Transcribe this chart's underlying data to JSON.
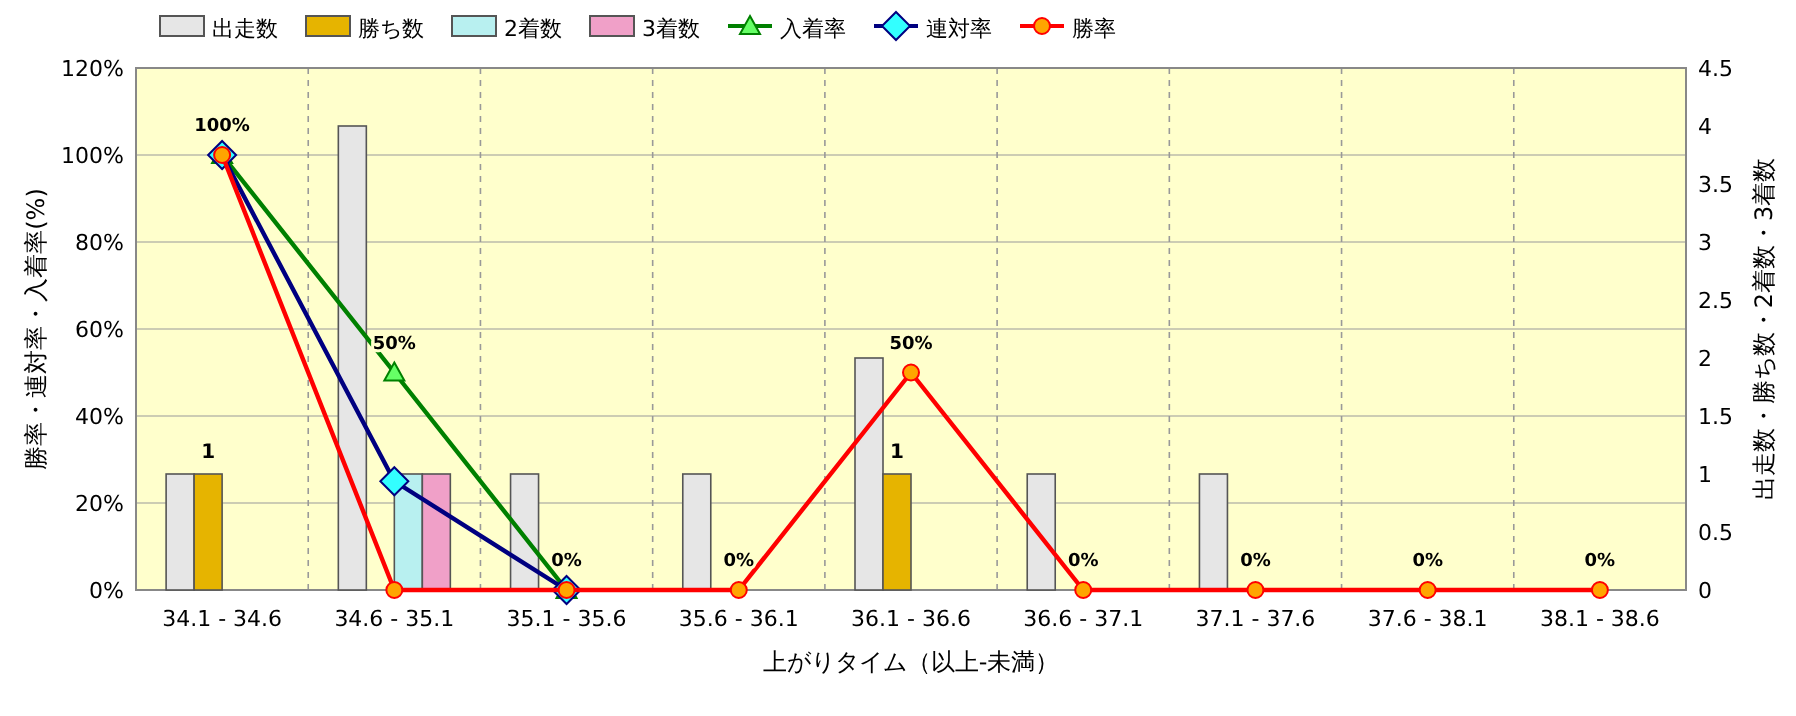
{
  "chart_data": {
    "type": "bar",
    "xlabel": "上がりタイム（以上-未満）",
    "ylabel": "勝率・連対率・入着率(%)",
    "y2label": "出走数・勝ち数・2着数・3着数",
    "categories": [
      "34.1 - 34.6",
      "34.6 - 35.1",
      "35.1 - 35.6",
      "35.6 - 36.1",
      "36.1 - 36.6",
      "36.6 - 37.1",
      "37.1 - 37.6",
      "37.6 - 38.1",
      "38.1 - 38.6"
    ],
    "series": [
      {
        "name": "出走数",
        "axis": "y2",
        "color": "#e6e6e6",
        "values": [
          1,
          4,
          1,
          1,
          2,
          1,
          1,
          0,
          0
        ]
      },
      {
        "name": "勝ち数",
        "axis": "y2",
        "color": "#e6b400",
        "values": [
          1,
          0,
          0,
          0,
          1,
          0,
          0,
          0,
          0
        ],
        "value_labels": [
          "1",
          null,
          null,
          null,
          "1",
          null,
          null,
          null,
          null
        ]
      },
      {
        "name": "2着数",
        "axis": "y2",
        "color": "#b8f0f0",
        "values": [
          0,
          1,
          0,
          0,
          0,
          0,
          0,
          0,
          0
        ]
      },
      {
        "name": "3着数",
        "axis": "y2",
        "color": "#f0a0c8",
        "values": [
          0,
          1,
          0,
          0,
          0,
          0,
          0,
          0,
          0
        ]
      },
      {
        "name": "入着率",
        "type": "line",
        "color": "#008000",
        "marker": "triangle",
        "values": [
          100,
          50,
          0,
          null,
          null,
          null,
          null,
          null,
          null
        ],
        "value_labels": [
          "100%",
          "50%",
          "0%",
          null,
          null,
          null,
          null,
          null,
          null
        ]
      },
      {
        "name": "連対率",
        "type": "line",
        "color": "#000080",
        "marker": "diamond",
        "values": [
          100,
          25,
          0,
          null,
          null,
          null,
          null,
          null,
          null
        ]
      },
      {
        "name": "勝率",
        "type": "line",
        "color": "#ff0000",
        "marker": "circle",
        "values": [
          100,
          0,
          0,
          0,
          50,
          0,
          0,
          0,
          0
        ],
        "value_labels": [
          null,
          null,
          null,
          "0%",
          "50%",
          "0%",
          "0%",
          "0%",
          "0%"
        ]
      }
    ],
    "ylim": [
      0,
      120
    ],
    "yticks": [
      {
        "value": 0,
        "label": "0%"
      },
      {
        "value": 20,
        "label": "20%"
      },
      {
        "value": 40,
        "label": "40%"
      },
      {
        "value": 60,
        "label": "60%"
      },
      {
        "value": 80,
        "label": "80%"
      },
      {
        "value": 100,
        "label": "100%"
      },
      {
        "value": 120,
        "label": "120%"
      }
    ],
    "y2lim": [
      0,
      4.5
    ],
    "y2ticks": [
      0,
      0.5,
      1,
      1.5,
      2,
      2.5,
      3,
      3.5,
      4,
      4.5
    ],
    "grid": true,
    "legend": "top left"
  }
}
